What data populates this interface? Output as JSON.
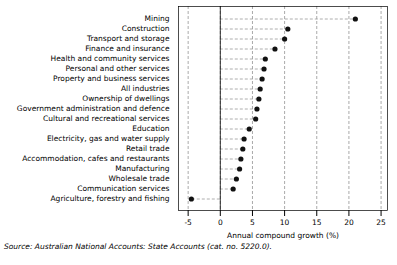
{
  "chart_data": {
    "type": "lollipop",
    "orientation": "horizontal",
    "xlabel": "Annual compound growth (%)",
    "caption": "Source: Australian National Accounts: State Accounts (cat. no. 5220.0).",
    "categories": [
      "Agriculture, forestry and fishing",
      "Communication services",
      "Wholesale trade",
      "Manufacturing",
      "Accommodation, cafes and restaurants",
      "Retail trade",
      "Electricity, gas and water supply",
      "Education",
      "Cultural and recreational services",
      "Government administration and defence",
      "Ownership of dwellings",
      "All industries",
      "Property and business services",
      "Personal and other services",
      "Health and community services",
      "Finance and insurance",
      "Transport and storage",
      "Construction",
      "Mining"
    ],
    "values": [
      -4.5,
      2.0,
      2.5,
      3.0,
      3.2,
      3.5,
      3.7,
      4.5,
      5.5,
      5.7,
      6.0,
      6.2,
      6.5,
      6.8,
      7.0,
      8.5,
      10.0,
      10.5,
      21.0
    ],
    "color": "#111111",
    "xlim": [
      -6.5,
      26
    ],
    "xticks": [
      -5,
      0,
      5,
      10,
      15,
      20,
      25
    ],
    "grid": true
  }
}
